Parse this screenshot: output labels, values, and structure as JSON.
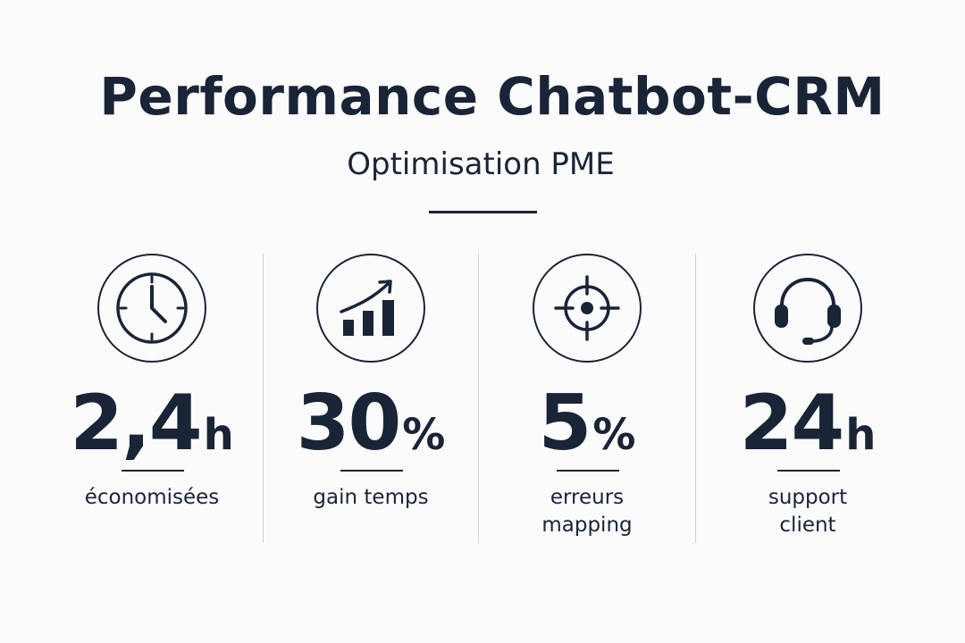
{
  "header": {
    "title": "Performance Chatbot-CRM",
    "subtitle": "Optimisation PME"
  },
  "metrics": [
    {
      "icon": "clock-icon",
      "value": "2,4",
      "unit": "h",
      "label_lines": [
        "économisées"
      ]
    },
    {
      "icon": "growth-chart-icon",
      "value": "30",
      "unit": "%",
      "label_lines": [
        "gain temps"
      ]
    },
    {
      "icon": "target-icon",
      "value": "5",
      "unit": "%",
      "label_lines": [
        "erreurs",
        "mapping"
      ]
    },
    {
      "icon": "headset-icon",
      "value": "24",
      "unit": "h",
      "label_lines": [
        "support",
        "client"
      ]
    }
  ],
  "colors": {
    "ink": "#1a2437",
    "background": "#fbfbfc",
    "divider": "#cfd3d9"
  }
}
